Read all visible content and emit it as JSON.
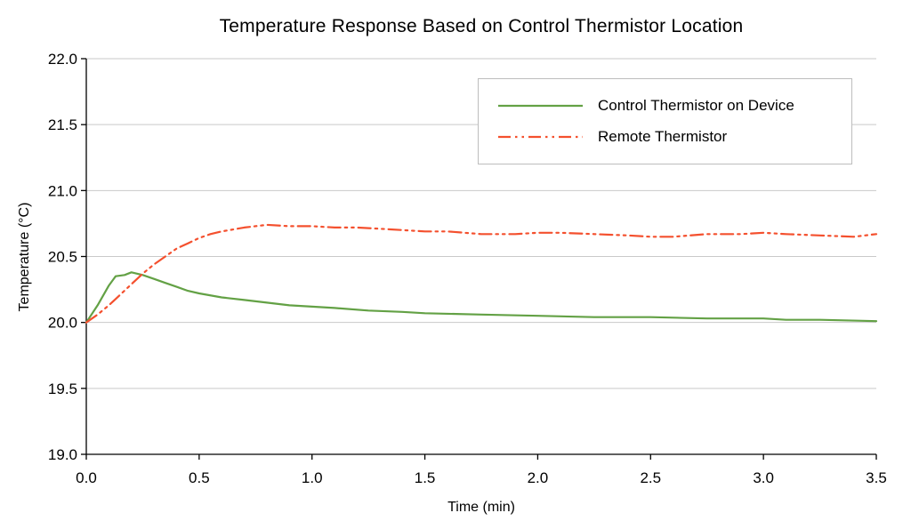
{
  "chart_data": {
    "type": "line",
    "title": "Temperature Response Based on Control Thermistor Location",
    "xlabel": "Time (min)",
    "ylabel": "Temperature (°C)",
    "xlim": [
      0.0,
      3.5
    ],
    "ylim": [
      19.0,
      22.0
    ],
    "xticks": [
      0.0,
      0.5,
      1.0,
      1.5,
      2.0,
      2.5,
      3.0,
      3.5
    ],
    "yticks": [
      19.0,
      19.5,
      20.0,
      20.5,
      21.0,
      21.5,
      22.0
    ],
    "grid": "horizontal",
    "grid_color": "#c9c9c9",
    "axis_color": "#000000",
    "legend_position": "inside-top-right",
    "series": [
      {
        "name": "Control Thermistor on Device",
        "color": "#63a145",
        "dash": "solid",
        "x": [
          0,
          0.05,
          0.1,
          0.13,
          0.17,
          0.2,
          0.25,
          0.3,
          0.35,
          0.4,
          0.45,
          0.5,
          0.6,
          0.7,
          0.8,
          0.9,
          1.0,
          1.1,
          1.25,
          1.4,
          1.5,
          1.75,
          2.0,
          2.25,
          2.5,
          2.75,
          3.0,
          3.1,
          3.25,
          3.5
        ],
        "y": [
          20.0,
          20.13,
          20.28,
          20.35,
          20.36,
          20.38,
          20.36,
          20.33,
          20.3,
          20.27,
          20.24,
          20.22,
          20.19,
          20.17,
          20.15,
          20.13,
          20.12,
          20.11,
          20.09,
          20.08,
          20.07,
          20.06,
          20.05,
          20.04,
          20.04,
          20.03,
          20.03,
          20.02,
          20.02,
          20.01
        ]
      },
      {
        "name": "Remote Thermistor",
        "color": "#f4502e",
        "dash": "dash-dot-dot",
        "x": [
          0,
          0.05,
          0.1,
          0.15,
          0.2,
          0.25,
          0.3,
          0.35,
          0.4,
          0.45,
          0.5,
          0.55,
          0.6,
          0.7,
          0.8,
          0.9,
          1.0,
          1.1,
          1.2,
          1.3,
          1.4,
          1.5,
          1.6,
          1.75,
          1.9,
          2.0,
          2.1,
          2.25,
          2.4,
          2.5,
          2.6,
          2.75,
          2.9,
          3.0,
          3.1,
          3.25,
          3.4,
          3.5
        ],
        "y": [
          20.0,
          20.06,
          20.13,
          20.21,
          20.29,
          20.37,
          20.44,
          20.5,
          20.56,
          20.6,
          20.64,
          20.67,
          20.69,
          20.72,
          20.74,
          20.73,
          20.73,
          20.72,
          20.72,
          20.71,
          20.7,
          20.69,
          20.69,
          20.67,
          20.67,
          20.68,
          20.68,
          20.67,
          20.66,
          20.65,
          20.65,
          20.67,
          20.67,
          20.68,
          20.67,
          20.66,
          20.65,
          20.67
        ]
      }
    ]
  }
}
